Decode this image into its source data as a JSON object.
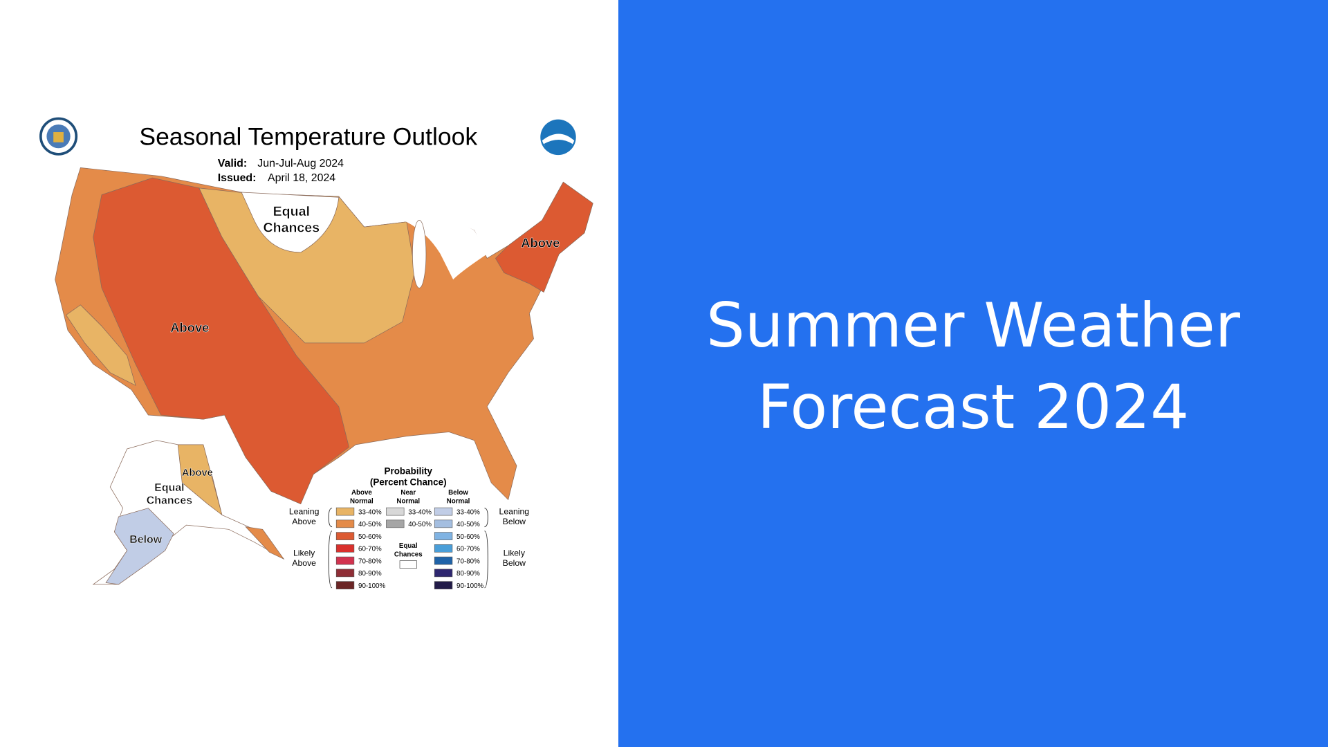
{
  "map": {
    "title": "Seasonal Temperature Outlook",
    "valid_label": "Valid:",
    "valid": "Jun-Jul-Aug 2024",
    "issued_label": "Issued:",
    "issued": "April 18, 2024",
    "region_labels": [
      "Equal Chances",
      "Above",
      "Above",
      "Above",
      "Equal Chances",
      "Below"
    ],
    "legend": {
      "title": "Probability",
      "subtitle": "(Percent Chance)",
      "columns": [
        {
          "name": "Above Normal",
          "items": [
            {
              "label": "33-40%",
              "color": "#e8b465"
            },
            {
              "label": "40-50%",
              "color": "#e48b49"
            },
            {
              "label": "50-60%",
              "color": "#dc5a32"
            },
            {
              "label": "60-70%",
              "color": "#d9302c"
            },
            {
              "label": "70-80%",
              "color": "#d2334f"
            },
            {
              "label": "80-90%",
              "color": "#8f2e36"
            },
            {
              "label": "90-100%",
              "color": "#6b2525"
            }
          ]
        },
        {
          "name": "Near Normal",
          "items": [
            {
              "label": "33-40%",
              "color": "#d8d8d8"
            },
            {
              "label": "40-50%",
              "color": "#a6a6a6"
            }
          ]
        },
        {
          "name": "Below Normal",
          "items": [
            {
              "label": "33-40%",
              "color": "#c1cde6"
            },
            {
              "label": "40-50%",
              "color": "#a4bee0"
            },
            {
              "label": "50-60%",
              "color": "#7fb3e3"
            },
            {
              "label": "60-70%",
              "color": "#4a9ed8"
            },
            {
              "label": "70-80%",
              "color": "#1f63a8"
            },
            {
              "label": "80-90%",
              "color": "#2e2770"
            },
            {
              "label": "90-100%",
              "color": "#221b48"
            }
          ]
        }
      ],
      "side_labels": [
        "Leaning Above",
        "Likely Above",
        "Leaning Below",
        "Likely Below"
      ],
      "equal_chances": "Equal Chances"
    }
  },
  "slide": {
    "title": "Summer Weather Forecast 2024",
    "background": "#2471ef"
  }
}
